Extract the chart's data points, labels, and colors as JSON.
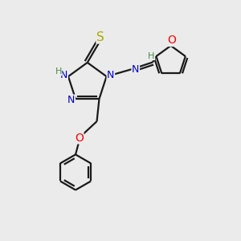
{
  "background_color": "#ebebeb",
  "atom_colors": {
    "C": "#000000",
    "N": "#0000cc",
    "O": "#ff0000",
    "S": "#aaaa00",
    "H": "#4a8a4a"
  },
  "bond_color": "#1a1a1a",
  "bond_lw": 1.6
}
